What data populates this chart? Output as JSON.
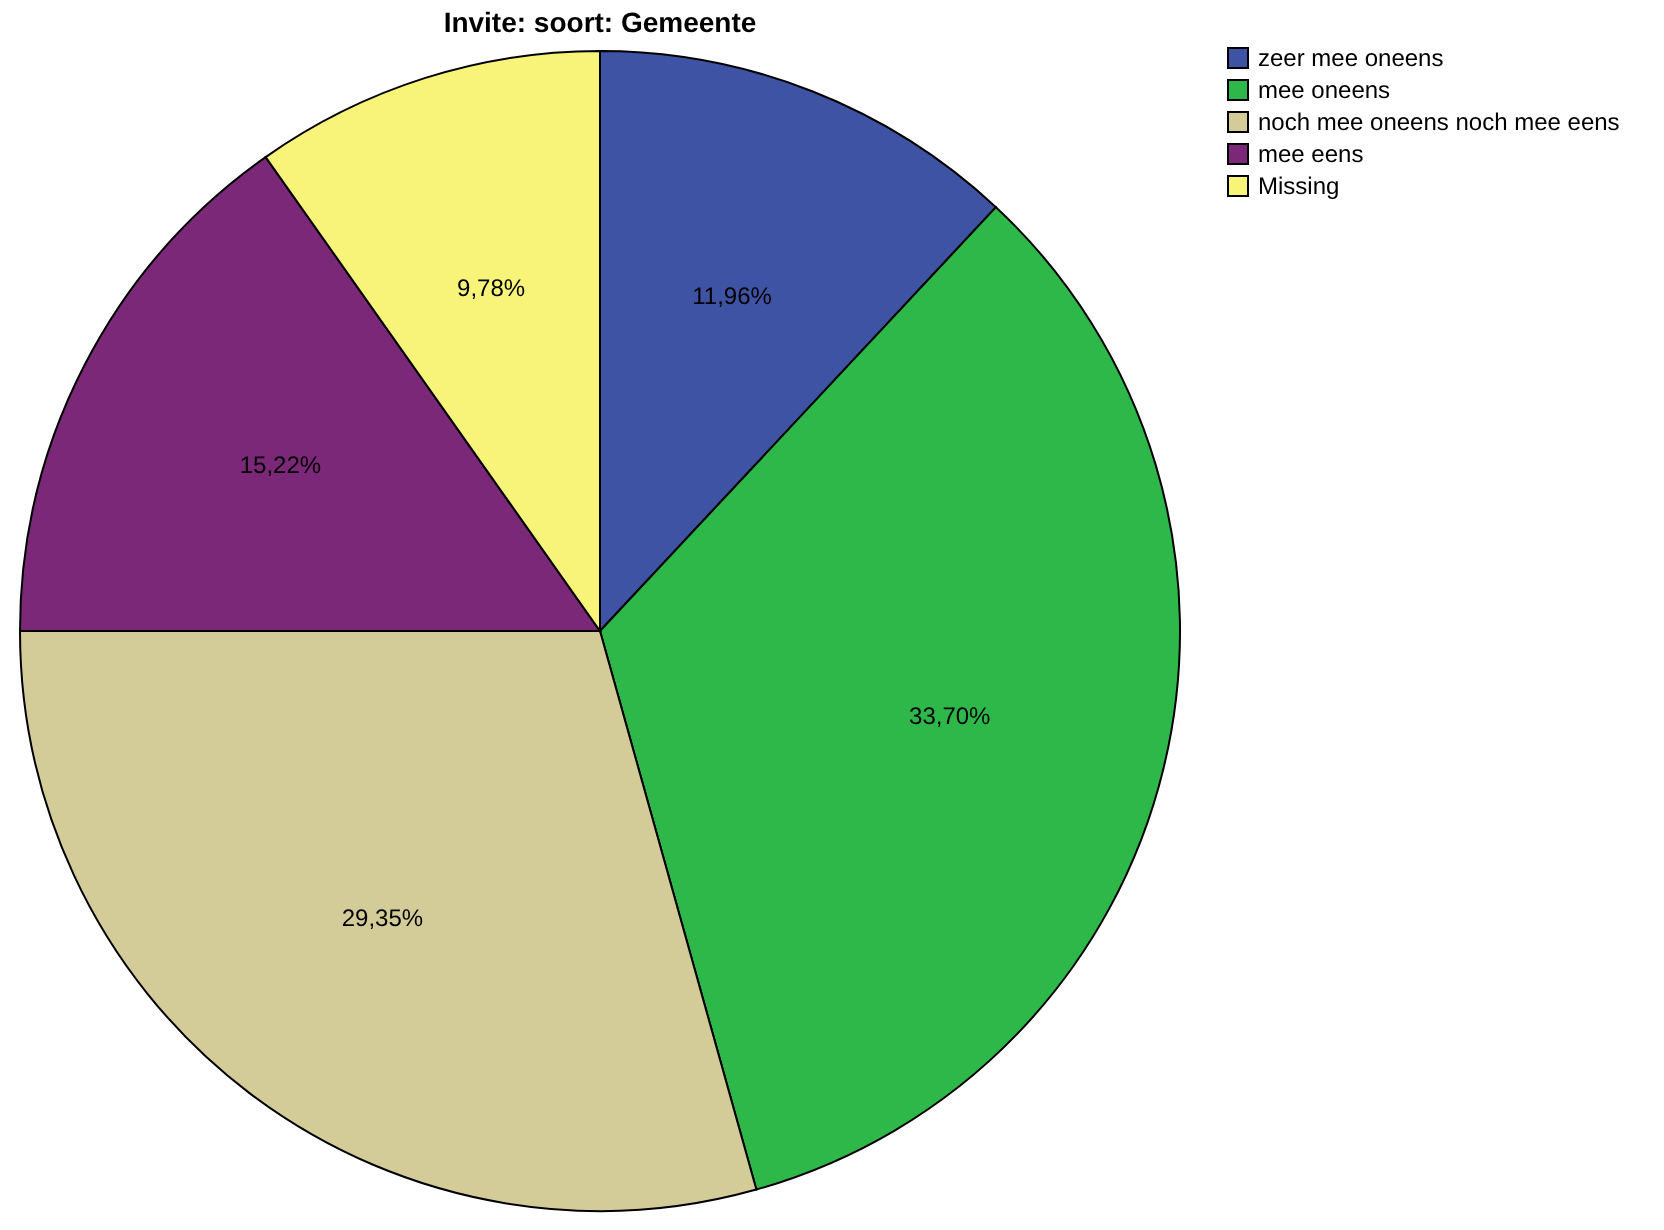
{
  "chart_data": {
    "type": "pie",
    "title": "Invite: soort: Gemeente",
    "categories": [
      "zeer mee oneens",
      "mee oneens",
      "noch mee oneens noch mee eens",
      "mee eens",
      "Missing"
    ],
    "values": [
      11.96,
      33.7,
      29.35,
      15.22,
      9.78
    ],
    "value_labels": [
      "11,96%",
      "33,70%",
      "29,35%",
      "15,22%",
      "9,78%"
    ],
    "colors": [
      "#3e53a4",
      "#2fb84a",
      "#d4cc98",
      "#7b2879",
      "#f8f47a"
    ],
    "legend": "top right"
  }
}
